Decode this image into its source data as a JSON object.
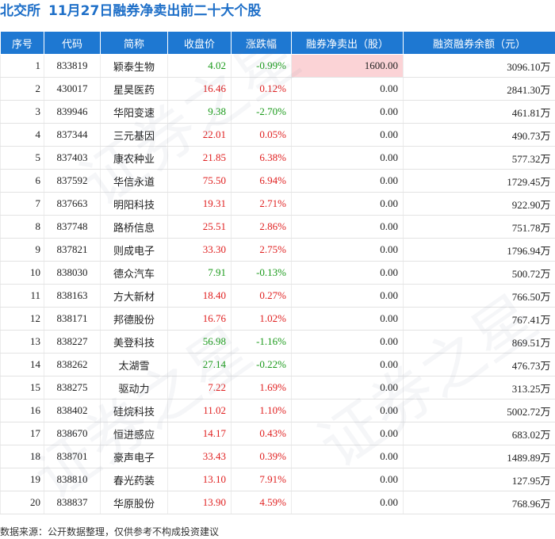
{
  "title": {
    "exchange": "北交所",
    "heading": "11月27日融券净卖出前二十大个股"
  },
  "table": {
    "headers": [
      "序号",
      "代码",
      "简称",
      "收盘价",
      "涨跌幅",
      "融券净卖出（股）",
      "融资融券余额（元）"
    ],
    "rows": [
      {
        "idx": "1",
        "code": "833819",
        "name": "颖泰生物",
        "close": "4.02",
        "change": "-0.99%",
        "net_sell": "1600.00",
        "balance": "3096.10万"
      },
      {
        "idx": "2",
        "code": "430017",
        "name": "星昊医药",
        "close": "16.46",
        "change": "0.12%",
        "net_sell": "0.00",
        "balance": "2841.30万"
      },
      {
        "idx": "3",
        "code": "839946",
        "name": "华阳变速",
        "close": "9.38",
        "change": "-2.70%",
        "net_sell": "0.00",
        "balance": "461.81万"
      },
      {
        "idx": "4",
        "code": "837344",
        "name": "三元基因",
        "close": "22.01",
        "change": "0.05%",
        "net_sell": "0.00",
        "balance": "490.73万"
      },
      {
        "idx": "5",
        "code": "837403",
        "name": "康农种业",
        "close": "21.85",
        "change": "6.38%",
        "net_sell": "0.00",
        "balance": "577.32万"
      },
      {
        "idx": "6",
        "code": "837592",
        "name": "华信永道",
        "close": "75.50",
        "change": "6.94%",
        "net_sell": "0.00",
        "balance": "1729.45万"
      },
      {
        "idx": "7",
        "code": "837663",
        "name": "明阳科技",
        "close": "19.31",
        "change": "2.71%",
        "net_sell": "0.00",
        "balance": "922.90万"
      },
      {
        "idx": "8",
        "code": "837748",
        "name": "路桥信息",
        "close": "25.51",
        "change": "2.86%",
        "net_sell": "0.00",
        "balance": "751.78万"
      },
      {
        "idx": "9",
        "code": "837821",
        "name": "则成电子",
        "close": "33.30",
        "change": "2.75%",
        "net_sell": "0.00",
        "balance": "1796.94万"
      },
      {
        "idx": "10",
        "code": "838030",
        "name": "德众汽车",
        "close": "7.91",
        "change": "-0.13%",
        "net_sell": "0.00",
        "balance": "500.72万"
      },
      {
        "idx": "11",
        "code": "838163",
        "name": "方大新材",
        "close": "18.40",
        "change": "0.27%",
        "net_sell": "0.00",
        "balance": "766.50万"
      },
      {
        "idx": "12",
        "code": "838171",
        "name": "邦德股份",
        "close": "16.76",
        "change": "1.02%",
        "net_sell": "0.00",
        "balance": "767.41万"
      },
      {
        "idx": "13",
        "code": "838227",
        "name": "美登科技",
        "close": "56.98",
        "change": "-1.16%",
        "net_sell": "0.00",
        "balance": "869.51万"
      },
      {
        "idx": "14",
        "code": "838262",
        "name": "太湖雪",
        "close": "27.14",
        "change": "-0.22%",
        "net_sell": "0.00",
        "balance": "476.73万"
      },
      {
        "idx": "15",
        "code": "838275",
        "name": "驱动力",
        "close": "7.22",
        "change": "1.69%",
        "net_sell": "0.00",
        "balance": "313.25万"
      },
      {
        "idx": "16",
        "code": "838402",
        "name": "硅烷科技",
        "close": "11.02",
        "change": "1.10%",
        "net_sell": "0.00",
        "balance": "5002.72万"
      },
      {
        "idx": "17",
        "code": "838670",
        "name": "恒进感应",
        "close": "14.17",
        "change": "0.43%",
        "net_sell": "0.00",
        "balance": "683.02万"
      },
      {
        "idx": "18",
        "code": "838701",
        "name": "豪声电子",
        "close": "33.43",
        "change": "0.39%",
        "net_sell": "0.00",
        "balance": "1489.89万"
      },
      {
        "idx": "19",
        "code": "838810",
        "name": "春光药装",
        "close": "13.10",
        "change": "7.91%",
        "net_sell": "0.00",
        "balance": "127.95万"
      },
      {
        "idx": "20",
        "code": "838837",
        "name": "华原股份",
        "close": "13.90",
        "change": "4.59%",
        "net_sell": "0.00",
        "balance": "768.96万"
      }
    ]
  },
  "source": "数据来源：公开数据整理，仅供参考不构成投资建议",
  "watermark": "证券之星",
  "colors": {
    "header_bg": "#1e78d2",
    "title": "#1e6fc8",
    "up": "#e02020",
    "down": "#1a9a1a",
    "highlight": "#fbd3d6"
  }
}
